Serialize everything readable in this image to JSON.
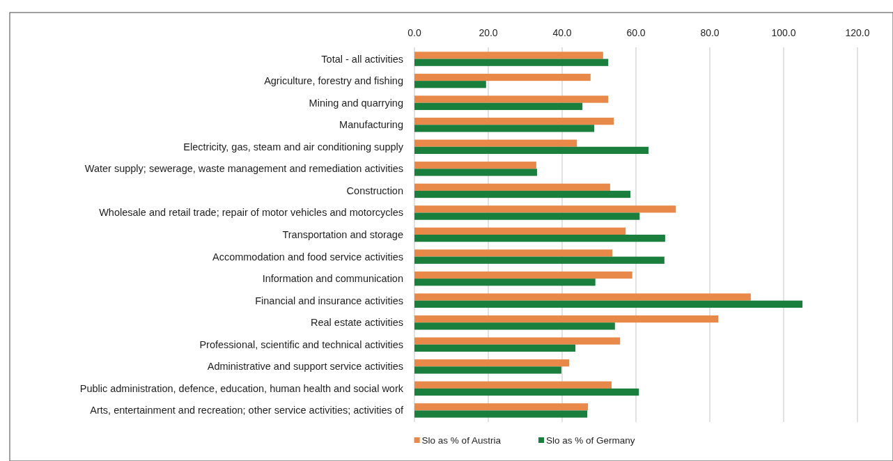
{
  "chart_data": {
    "type": "bar",
    "orientation": "horizontal",
    "categories": [
      "Total - all activities",
      "Agriculture, forestry and fishing",
      "Mining and quarrying",
      "Manufacturing",
      "Electricity, gas, steam and air conditioning supply",
      "Water supply; sewerage, waste management and remediation activities",
      "Construction",
      "Wholesale and retail trade; repair of motor vehicles and motorcycles",
      "Transportation and storage",
      "Accommodation and food service activities",
      "Information and communication",
      "Financial and insurance activities",
      "Real estate activities",
      "Professional, scientific and technical activities",
      "Administrative and support service activities",
      "Public administration, defence, education, human health and social work",
      "Arts, entertainment and recreation; other service activities; activities of"
    ],
    "series": [
      {
        "name": "Slo as % of Austria",
        "color": "#e8894a",
        "values": [
          51.1,
          47.7,
          52.5,
          54.0,
          44.0,
          33.0,
          53.0,
          70.8,
          57.2,
          53.6,
          59.0,
          91.1,
          82.3,
          55.7,
          41.9,
          53.4,
          47.0
        ]
      },
      {
        "name": "Slo as % of Germany",
        "color": "#1a7f3c",
        "values": [
          52.5,
          19.4,
          45.5,
          48.7,
          63.4,
          33.2,
          58.5,
          61.0,
          67.9,
          67.7,
          49.0,
          105.1,
          54.3,
          43.6,
          39.8,
          60.8,
          46.8
        ]
      }
    ],
    "xlim": [
      0,
      120
    ],
    "xticks": [
      {
        "value": 0,
        "label": "0.0"
      },
      {
        "value": 20,
        "label": "20.0"
      },
      {
        "value": 40,
        "label": "40.0"
      },
      {
        "value": 60,
        "label": "60.0"
      },
      {
        "value": 80,
        "label": "80.0"
      },
      {
        "value": 100,
        "label": "100.0"
      },
      {
        "value": 120,
        "label": "120.0"
      }
    ],
    "grid": "x",
    "legend": "bottom"
  }
}
